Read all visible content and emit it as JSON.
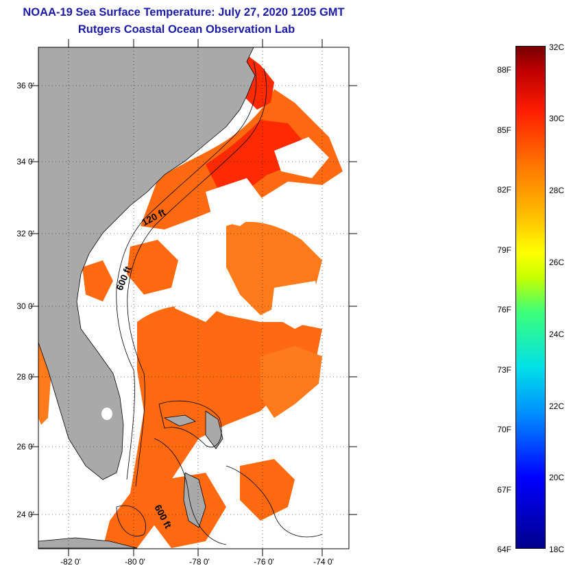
{
  "title": {
    "line1": "NOAA-19 Sea Surface Temperature:  July 27, 2020 1205 GMT",
    "line2": "Rutgers Coastal Ocean Observation Lab"
  },
  "latitude_labels": [
    "36 0'",
    "34 0'",
    "32 0'",
    "30 0'",
    "28 0'",
    "26 0'",
    "24 0'"
  ],
  "longitude_labels": [
    "-82 0'",
    "-80 0'",
    "-78 0'",
    "-76 0'",
    "-74 0'"
  ],
  "isobath_labels": [
    "120 ft",
    "600 ft",
    "600 ft"
  ],
  "colorbar": {
    "fahrenheit": [
      "88F",
      "85F",
      "82F",
      "79F",
      "76F",
      "73F",
      "70F",
      "67F",
      "64F"
    ],
    "celsius": [
      "32C",
      "30C",
      "28C",
      "26C",
      "24C",
      "22C",
      "20C",
      "18C"
    ]
  },
  "colors": {
    "land": "#a9a9a9",
    "title": "#1a1aa6",
    "warm_water": "#ff6a10",
    "hot_water": "#ff2a00"
  }
}
